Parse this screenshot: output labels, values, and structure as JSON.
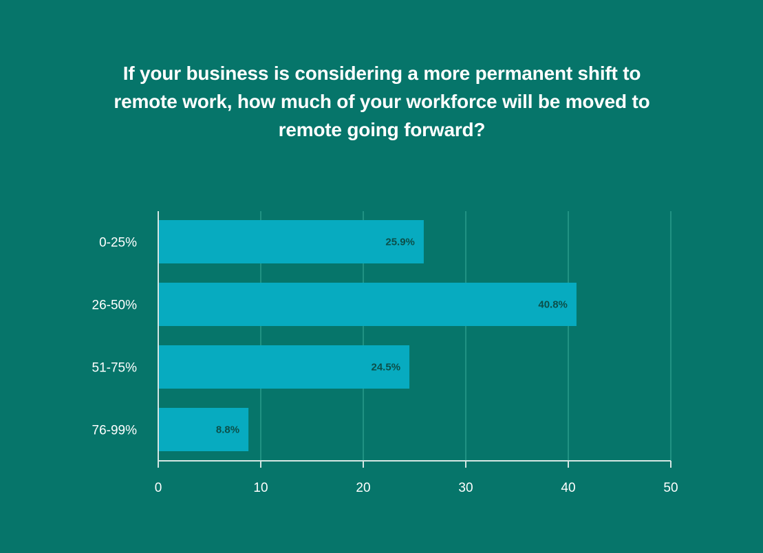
{
  "chart_data": {
    "type": "bar",
    "orientation": "horizontal",
    "title": "If your business is considering a more permanent shift to\nremote work, how much of your workforce will be moved to\nremote going forward?",
    "categories": [
      "0-25%",
      "26-50%",
      "51-75%",
      "76-99%"
    ],
    "values": [
      25.9,
      40.8,
      24.5,
      8.8
    ],
    "data_labels": [
      "25.9%",
      "40.8%",
      "24.5%",
      "8.8%"
    ],
    "xlabel": "",
    "ylabel": "",
    "xlim": [
      0,
      50
    ],
    "xticks": [
      0,
      10,
      20,
      30,
      40,
      50
    ],
    "xtick_labels": [
      "0",
      "10",
      "20",
      "30",
      "40",
      "50"
    ],
    "grid": true,
    "legend": "none"
  },
  "colors": {
    "background": "#06756a",
    "bar": "#07abc0",
    "gridline": "#2a9b8b",
    "axis": "#d6e7e4",
    "text": "#ffffff",
    "data_label": "#0c4f49"
  }
}
